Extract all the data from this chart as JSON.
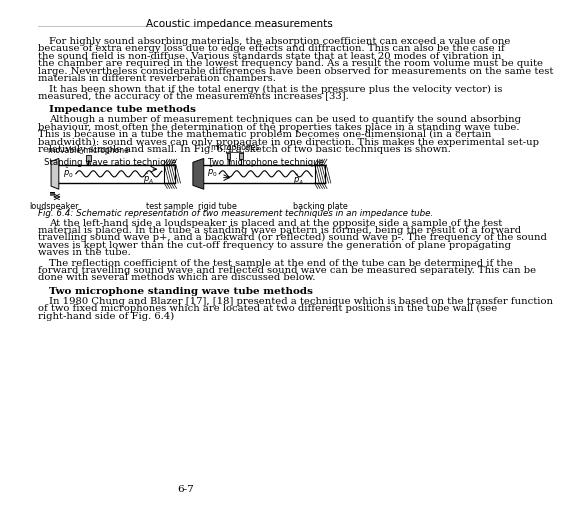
{
  "header": "Acoustic impedance measurements",
  "page_number": "6-7",
  "bg_color": "#ffffff",
  "text_color": "#000000",
  "para1": "For highly sound absorbing materials, the absorption coefficient can exceed a value of one because of extra energy loss due to edge effects and diffraction. This can also be the case if the sound field is non-diffuse. Various standards state that at least 20 modes of vibration in the chamber are required in the lowest frequency band. As a result the room volume must be quite large. Nevertheless considerable differences have been observed for measurements on the same test materials in different reverberation chambers.",
  "para2": "It has been shown that if the total energy (that is the pressure plus the velocity vector) is measured, the accuracy of the measurements increases [33].",
  "section1_title": "Impedance tube methods",
  "para3": "Although a number of measurement techniques can be used to quantify the sound absorbing behaviour, most often the determination of the properties takes place in a standing wave tube. This is because in a tube the mathematic problem becomes one-dimensional (in a certain bandwidth): sound waves can only propagate in one direction. This makes the experimental set-up relatively simple and small. In Fig. 6.4 a sketch of two basic techniques is shown.",
  "fig_caption": "Fig. 6.4: Schematic representation of two measurement techniques in an impedance tube.",
  "para4": "At the left-hand side a loudspeaker is placed and at the opposite side a sample of the test material is placed. In the tube a standing wave pattern is formed, being the result of a forward travelling sound wave  p+, and a backward (or reflected) sound wave  p-. The frequency of the sound waves is kept lower than the cut-off frequency to assure the generation of plane propagating waves in the tube.",
  "para5": "The reflection coefficient of the test sample at the end of the tube can be determined if the forward travelling sound wave and reflected sound wave can be measured separately. This can be done with several methods which are discussed below.",
  "section2_title": "Two microphone standing wave tube methods",
  "para6": "In 1980 Chung and Blazer [17], [18] presented a technique which is based on the transfer function of two fixed microphones which are located at two different positions in the tube wall (see right-hand side of Fig. 6.4)",
  "label_standing": "Standing wave ratio technique",
  "label_two_mic": "Two microphone technique",
  "label_movable_mic": "movable microphone",
  "label_microphones": "microphones",
  "label_loudspeaker": "loudspeaker",
  "label_test_sample": "test sample",
  "label_rigid_tube": "rigid tube",
  "label_backing_plate": "backing plate"
}
